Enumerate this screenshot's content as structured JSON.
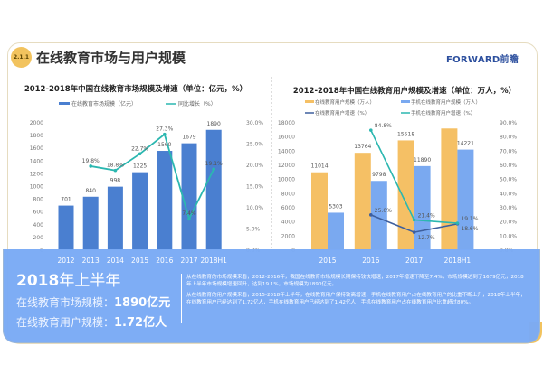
{
  "header": {
    "badge": "2.1.1",
    "title": "在线教育市场与用户规模",
    "logo": "FORWARD前瞻"
  },
  "colors": {
    "bar_blue": "#4a7fd0",
    "bar_orange": "#f5c065",
    "bar_light_blue": "#7aa9f0",
    "line_teal": "#2bb7b0",
    "line_navy": "#3e5f9e",
    "panel": "#7aaaf5",
    "badge": "#f2c35e"
  },
  "chart_data": [
    {
      "type": "bar+line",
      "title": "2012-2018年中国在线教育市场规模及增速（单位：亿元，%）",
      "categories": [
        "2012",
        "2013",
        "2014",
        "2015",
        "2016",
        "2017",
        "2018H1"
      ],
      "series": [
        {
          "name": "在线教育市场规模（亿元）",
          "type": "bar",
          "axis": "left",
          "values": [
            701,
            840,
            998,
            1225,
            1560,
            1679,
            1890
          ]
        },
        {
          "name": "同比增长（%）",
          "type": "line",
          "axis": "right",
          "values": [
            null,
            19.8,
            18.8,
            22.7,
            27.3,
            7.4,
            19.1
          ]
        }
      ],
      "ylim": [
        0,
        2000
      ],
      "yticks": [
        0,
        200,
        400,
        600,
        800,
        1000,
        1200,
        1400,
        1600,
        1800,
        2000
      ],
      "y2lim": [
        0,
        30
      ],
      "y2ticks": [
        "0.0%",
        "5.0%",
        "10.0%",
        "15.0%",
        "20.0%",
        "25.0%",
        "30.0%"
      ],
      "legend": "top"
    },
    {
      "type": "bar+line",
      "title": "2012-2018年中国在线教育用户规模及增速（单位：万人，%）",
      "categories": [
        "2015",
        "2016",
        "2017",
        "2018H1"
      ],
      "series": [
        {
          "name": "在线教育用户规模（万人）",
          "type": "bar",
          "axis": "left",
          "values": [
            11014,
            13764,
            15518,
            17200
          ]
        },
        {
          "name": "手机在线教育用户规模（万人）",
          "type": "bar",
          "axis": "left",
          "values": [
            5303,
            9798,
            11890,
            14221
          ]
        },
        {
          "name": "在线教育用户增速（%）",
          "type": "line",
          "axis": "right",
          "values": [
            null,
            25.0,
            12.7,
            18.6
          ]
        },
        {
          "name": "手机在线教育用户增速（%）",
          "type": "line",
          "axis": "right",
          "values": [
            null,
            84.8,
            21.4,
            19.1
          ]
        }
      ],
      "ylim": [
        0,
        18000
      ],
      "yticks": [
        0,
        2000,
        4000,
        6000,
        8000,
        10000,
        12000,
        14000,
        16000,
        18000
      ],
      "y2lim": [
        0,
        90
      ],
      "y2ticks": [
        "0.0%",
        "10.0%",
        "20.0%",
        "30.0%",
        "40.0%",
        "50.0%",
        "60.0%",
        "70.0%",
        "80.0%",
        "90.0%"
      ],
      "legend": "top"
    }
  ],
  "summary": {
    "heading_year": "2018",
    "heading_rest": "年上半年",
    "market_label": "在线教育市场规模：",
    "market_value": "1890亿元",
    "users_label": "在线教育用户规模：",
    "users_value": "1.72亿人",
    "para1": "从在线教育的市场规模来看，2012-2016年，我国在线教育市场规模长期保持较快增速，2017年增速下降至7.4%，市场规模达到了1679亿元，2018年上半年市场规模增速回升，达到19.1%，市场规模为1890亿元。",
    "para2": "从在线教育的用户规模来看，2015-2018年上半年，在线教育用户保持较高增速，手机在线教育用户占在线教育用户的比重不断上升，2018年上半年，在线教育用户已经达到了1.72亿人，手机在线教育用户已经达到了1.42亿人，手机在线教育用户占在线教育用户比重超过80%。"
  }
}
